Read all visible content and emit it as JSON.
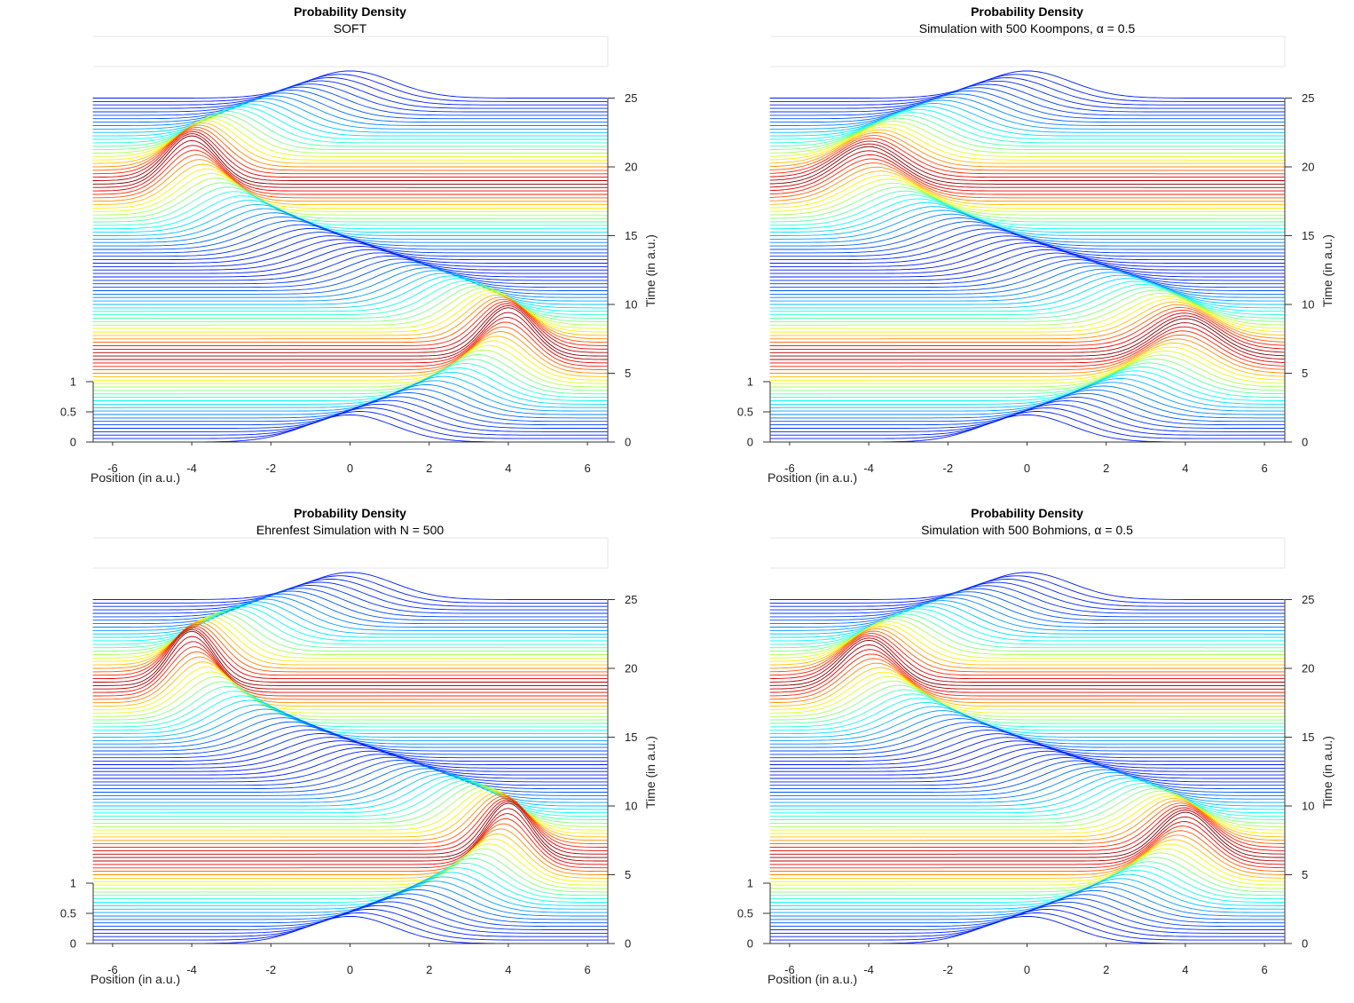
{
  "chart_data": [
    {
      "type": "waterfall-line",
      "title": "Probability Density",
      "subtitle": "SOFT",
      "xlabel": "Position (in a.u.)",
      "ylabel": "Time (in a.u.)",
      "xlim": [
        -6.5,
        6.5
      ],
      "xticks": [
        -6,
        -4,
        -2,
        0,
        2,
        4,
        6
      ],
      "time_lim": [
        0,
        25
      ],
      "time_ticks": [
        0,
        5,
        10,
        15,
        20,
        25
      ],
      "density_ticks": [
        0,
        0.5,
        1
      ],
      "time_step": 0.25,
      "oscillation_period": 25,
      "amplitude": 4,
      "peak_density": 0.55,
      "peak_density_range": [
        0.45,
        0.8
      ],
      "colormap": "jet"
    },
    {
      "type": "waterfall-line",
      "title": "Probability Density",
      "subtitle": "Simulation with 500 Koompons, α = 0.5",
      "xlabel": "Position (in a.u.)",
      "ylabel": "Time (in a.u.)",
      "xlim": [
        -6.5,
        6.5
      ],
      "xticks": [
        -6,
        -4,
        -2,
        0,
        2,
        4,
        6
      ],
      "time_lim": [
        0,
        25
      ],
      "time_ticks": [
        0,
        5,
        10,
        15,
        20,
        25
      ],
      "density_ticks": [
        0,
        0.5,
        1
      ],
      "time_step": 0.25,
      "oscillation_period": 25,
      "amplitude": 4,
      "peak_density": 0.5,
      "peak_density_range": [
        0.45,
        0.62
      ],
      "colormap": "jet"
    },
    {
      "type": "waterfall-line",
      "title": "Probability Density",
      "subtitle": "Ehrenfest Simulation with N = 500",
      "xlabel": "Position (in a.u.)",
      "ylabel": "Time (in a.u.)",
      "xlim": [
        -6.5,
        6.5
      ],
      "xticks": [
        -6,
        -4,
        -2,
        0,
        2,
        4,
        6
      ],
      "time_lim": [
        0,
        25
      ],
      "time_ticks": [
        0,
        5,
        10,
        15,
        20,
        25
      ],
      "density_ticks": [
        0,
        0.5,
        1
      ],
      "time_step": 0.25,
      "oscillation_period": 25,
      "amplitude": 4,
      "peak_density": 0.55,
      "peak_density_range": [
        0.45,
        0.9
      ],
      "colormap": "jet"
    },
    {
      "type": "waterfall-line",
      "title": "Probability Density",
      "subtitle": "Simulation with 500 Bohmions, α = 0.5",
      "xlabel": "Position (in a.u.)",
      "ylabel": "Time (in a.u.)",
      "xlim": [
        -6.5,
        6.5
      ],
      "xticks": [
        -6,
        -4,
        -2,
        0,
        2,
        4,
        6
      ],
      "time_lim": [
        0,
        25
      ],
      "time_ticks": [
        0,
        5,
        10,
        15,
        20,
        25
      ],
      "density_ticks": [
        0,
        0.5,
        1
      ],
      "time_step": 0.25,
      "oscillation_period": 25,
      "amplitude": 4,
      "peak_density": 0.5,
      "peak_density_range": [
        0.45,
        0.75
      ],
      "colormap": "jet"
    }
  ]
}
